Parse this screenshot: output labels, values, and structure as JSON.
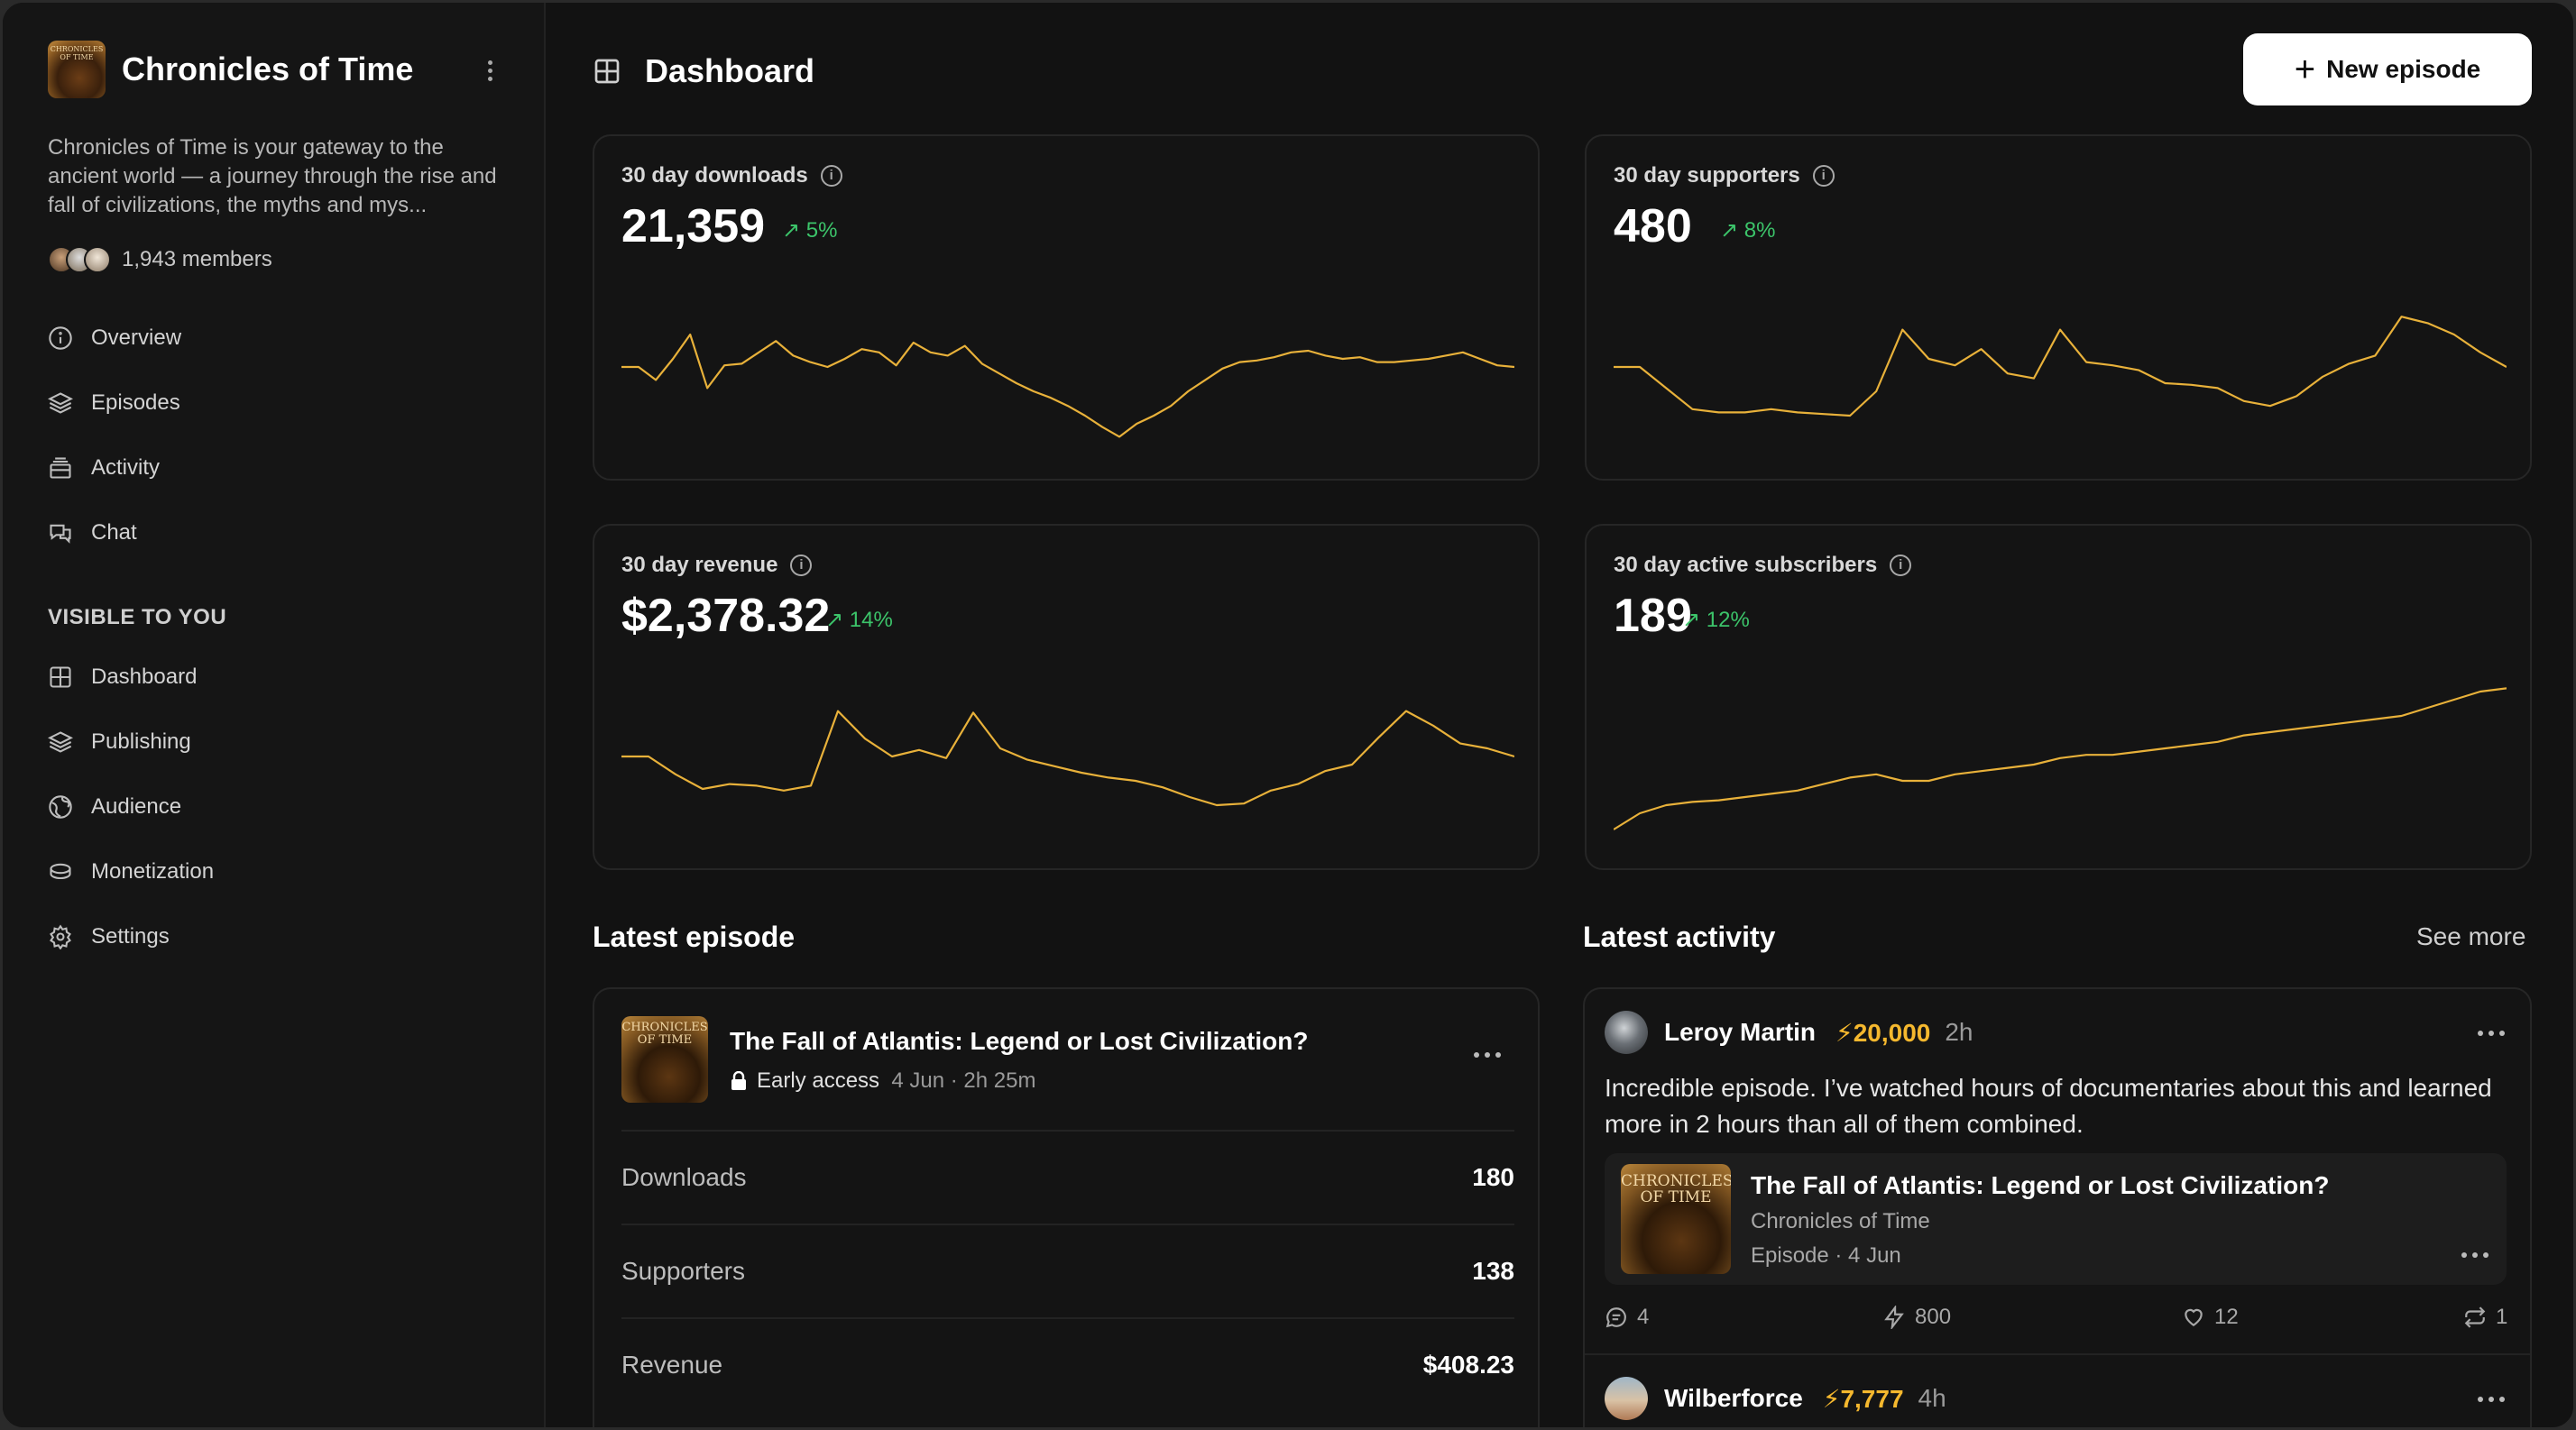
{
  "sidebar": {
    "brand_title": "Chronicles of Time",
    "logo_text": "CHRONICLES OF TIME",
    "description": "Chronicles of Time is your gateway to the ancient world — a journey through the rise and fall of civilizations, the myths and mys...",
    "members": "1,943 members",
    "nav": [
      {
        "label": "Overview",
        "icon": "info-circle-icon"
      },
      {
        "label": "Episodes",
        "icon": "layers-icon"
      },
      {
        "label": "Activity",
        "icon": "inbox-stack-icon"
      },
      {
        "label": "Chat",
        "icon": "chat-bubbles-icon"
      }
    ],
    "section_label": "VISIBLE TO YOU",
    "nav2": [
      {
        "label": "Dashboard",
        "icon": "grid-icon"
      },
      {
        "label": "Publishing",
        "icon": "layers-icon"
      },
      {
        "label": "Audience",
        "icon": "globe-icon"
      },
      {
        "label": "Monetization",
        "icon": "coins-icon"
      },
      {
        "label": "Settings",
        "icon": "gear-icon"
      }
    ]
  },
  "header": {
    "title": "Dashboard",
    "new_button": "New episode"
  },
  "stats": [
    {
      "label": "30 day downloads",
      "value": "21,359",
      "delta": "5%"
    },
    {
      "label": "30 day supporters",
      "value": "480",
      "delta": "8%"
    },
    {
      "label": "30 day revenue",
      "value": "$2,378.32",
      "delta": "14%"
    },
    {
      "label": "30 day active subscribers",
      "value": "189",
      "delta": "12%"
    }
  ],
  "colors": {
    "accent_line": "#e8b13a",
    "positive": "#3cc46a",
    "bolt": "#f5b82e"
  },
  "latest_episode": {
    "section_title": "Latest episode",
    "title": "The Fall of Atlantis: Legend or Lost Civilization?",
    "access": "Early access",
    "meta": "4 Jun · 2h 25m",
    "rows": [
      {
        "label": "Downloads",
        "value": "180"
      },
      {
        "label": "Supporters",
        "value": "138"
      },
      {
        "label": "Revenue",
        "value": "$408.23"
      }
    ]
  },
  "latest_activity": {
    "section_title": "Latest activity",
    "see_more": "See more",
    "items": [
      {
        "name": "Leroy Martin",
        "amount": "20,000",
        "time": "2h",
        "text": "Incredible episode. I’ve watched hours of documentaries about this and learned more in 2 hours than all of them combined.",
        "embed": {
          "title": "The Fall of Atlantis: Legend or Lost Civilization?",
          "subtitle": "Chronicles of Time",
          "meta": "Episode · 4 Jun"
        },
        "stats": {
          "comments": "4",
          "bolts": "800",
          "likes": "12",
          "reposts": "1"
        }
      },
      {
        "name": "Wilberforce",
        "amount": "7,777",
        "time": "4h"
      }
    ]
  },
  "chart_data": [
    {
      "type": "line",
      "series": [
        {
          "values": [
            0.55,
            0.55,
            0.47,
            0.6,
            0.75,
            0.42,
            0.56,
            0.57,
            0.64,
            0.71,
            0.62,
            0.58,
            0.55,
            0.6,
            0.66,
            0.64,
            0.56,
            0.7,
            0.64,
            0.62,
            0.68,
            0.57,
            0.51,
            0.45,
            0.4,
            0.36,
            0.31,
            0.25,
            0.18,
            0.12,
            0.2,
            0.25,
            0.31,
            0.4,
            0.47,
            0.54,
            0.58,
            0.59,
            0.61,
            0.64,
            0.65,
            0.62,
            0.6,
            0.61,
            0.58,
            0.58,
            0.59,
            0.6,
            0.62,
            0.64,
            0.6,
            0.56,
            0.55
          ]
        }
      ]
    },
    {
      "type": "line",
      "series": [
        {
          "values": [
            0.55,
            0.55,
            0.42,
            0.29,
            0.27,
            0.27,
            0.29,
            0.27,
            0.26,
            0.25,
            0.4,
            0.78,
            0.6,
            0.56,
            0.66,
            0.51,
            0.48,
            0.78,
            0.58,
            0.56,
            0.53,
            0.45,
            0.44,
            0.42,
            0.34,
            0.31,
            0.37,
            0.49,
            0.57,
            0.62,
            0.86,
            0.82,
            0.75,
            0.64,
            0.55
          ]
        }
      ]
    },
    {
      "type": "line",
      "series": [
        {
          "values": [
            0.55,
            0.55,
            0.44,
            0.35,
            0.38,
            0.37,
            0.34,
            0.37,
            0.83,
            0.66,
            0.55,
            0.59,
            0.54,
            0.82,
            0.6,
            0.53,
            0.49,
            0.45,
            0.42,
            0.4,
            0.36,
            0.3,
            0.25,
            0.26,
            0.34,
            0.38,
            0.46,
            0.5,
            0.67,
            0.83,
            0.74,
            0.63,
            0.6,
            0.55
          ]
        }
      ]
    },
    {
      "type": "line",
      "series": [
        {
          "values": [
            0.1,
            0.2,
            0.25,
            0.27,
            0.28,
            0.3,
            0.32,
            0.34,
            0.38,
            0.42,
            0.44,
            0.4,
            0.4,
            0.44,
            0.46,
            0.48,
            0.5,
            0.54,
            0.56,
            0.56,
            0.58,
            0.6,
            0.62,
            0.64,
            0.68,
            0.7,
            0.72,
            0.74,
            0.76,
            0.78,
            0.8,
            0.85,
            0.9,
            0.95,
            0.97
          ]
        }
      ]
    }
  ]
}
